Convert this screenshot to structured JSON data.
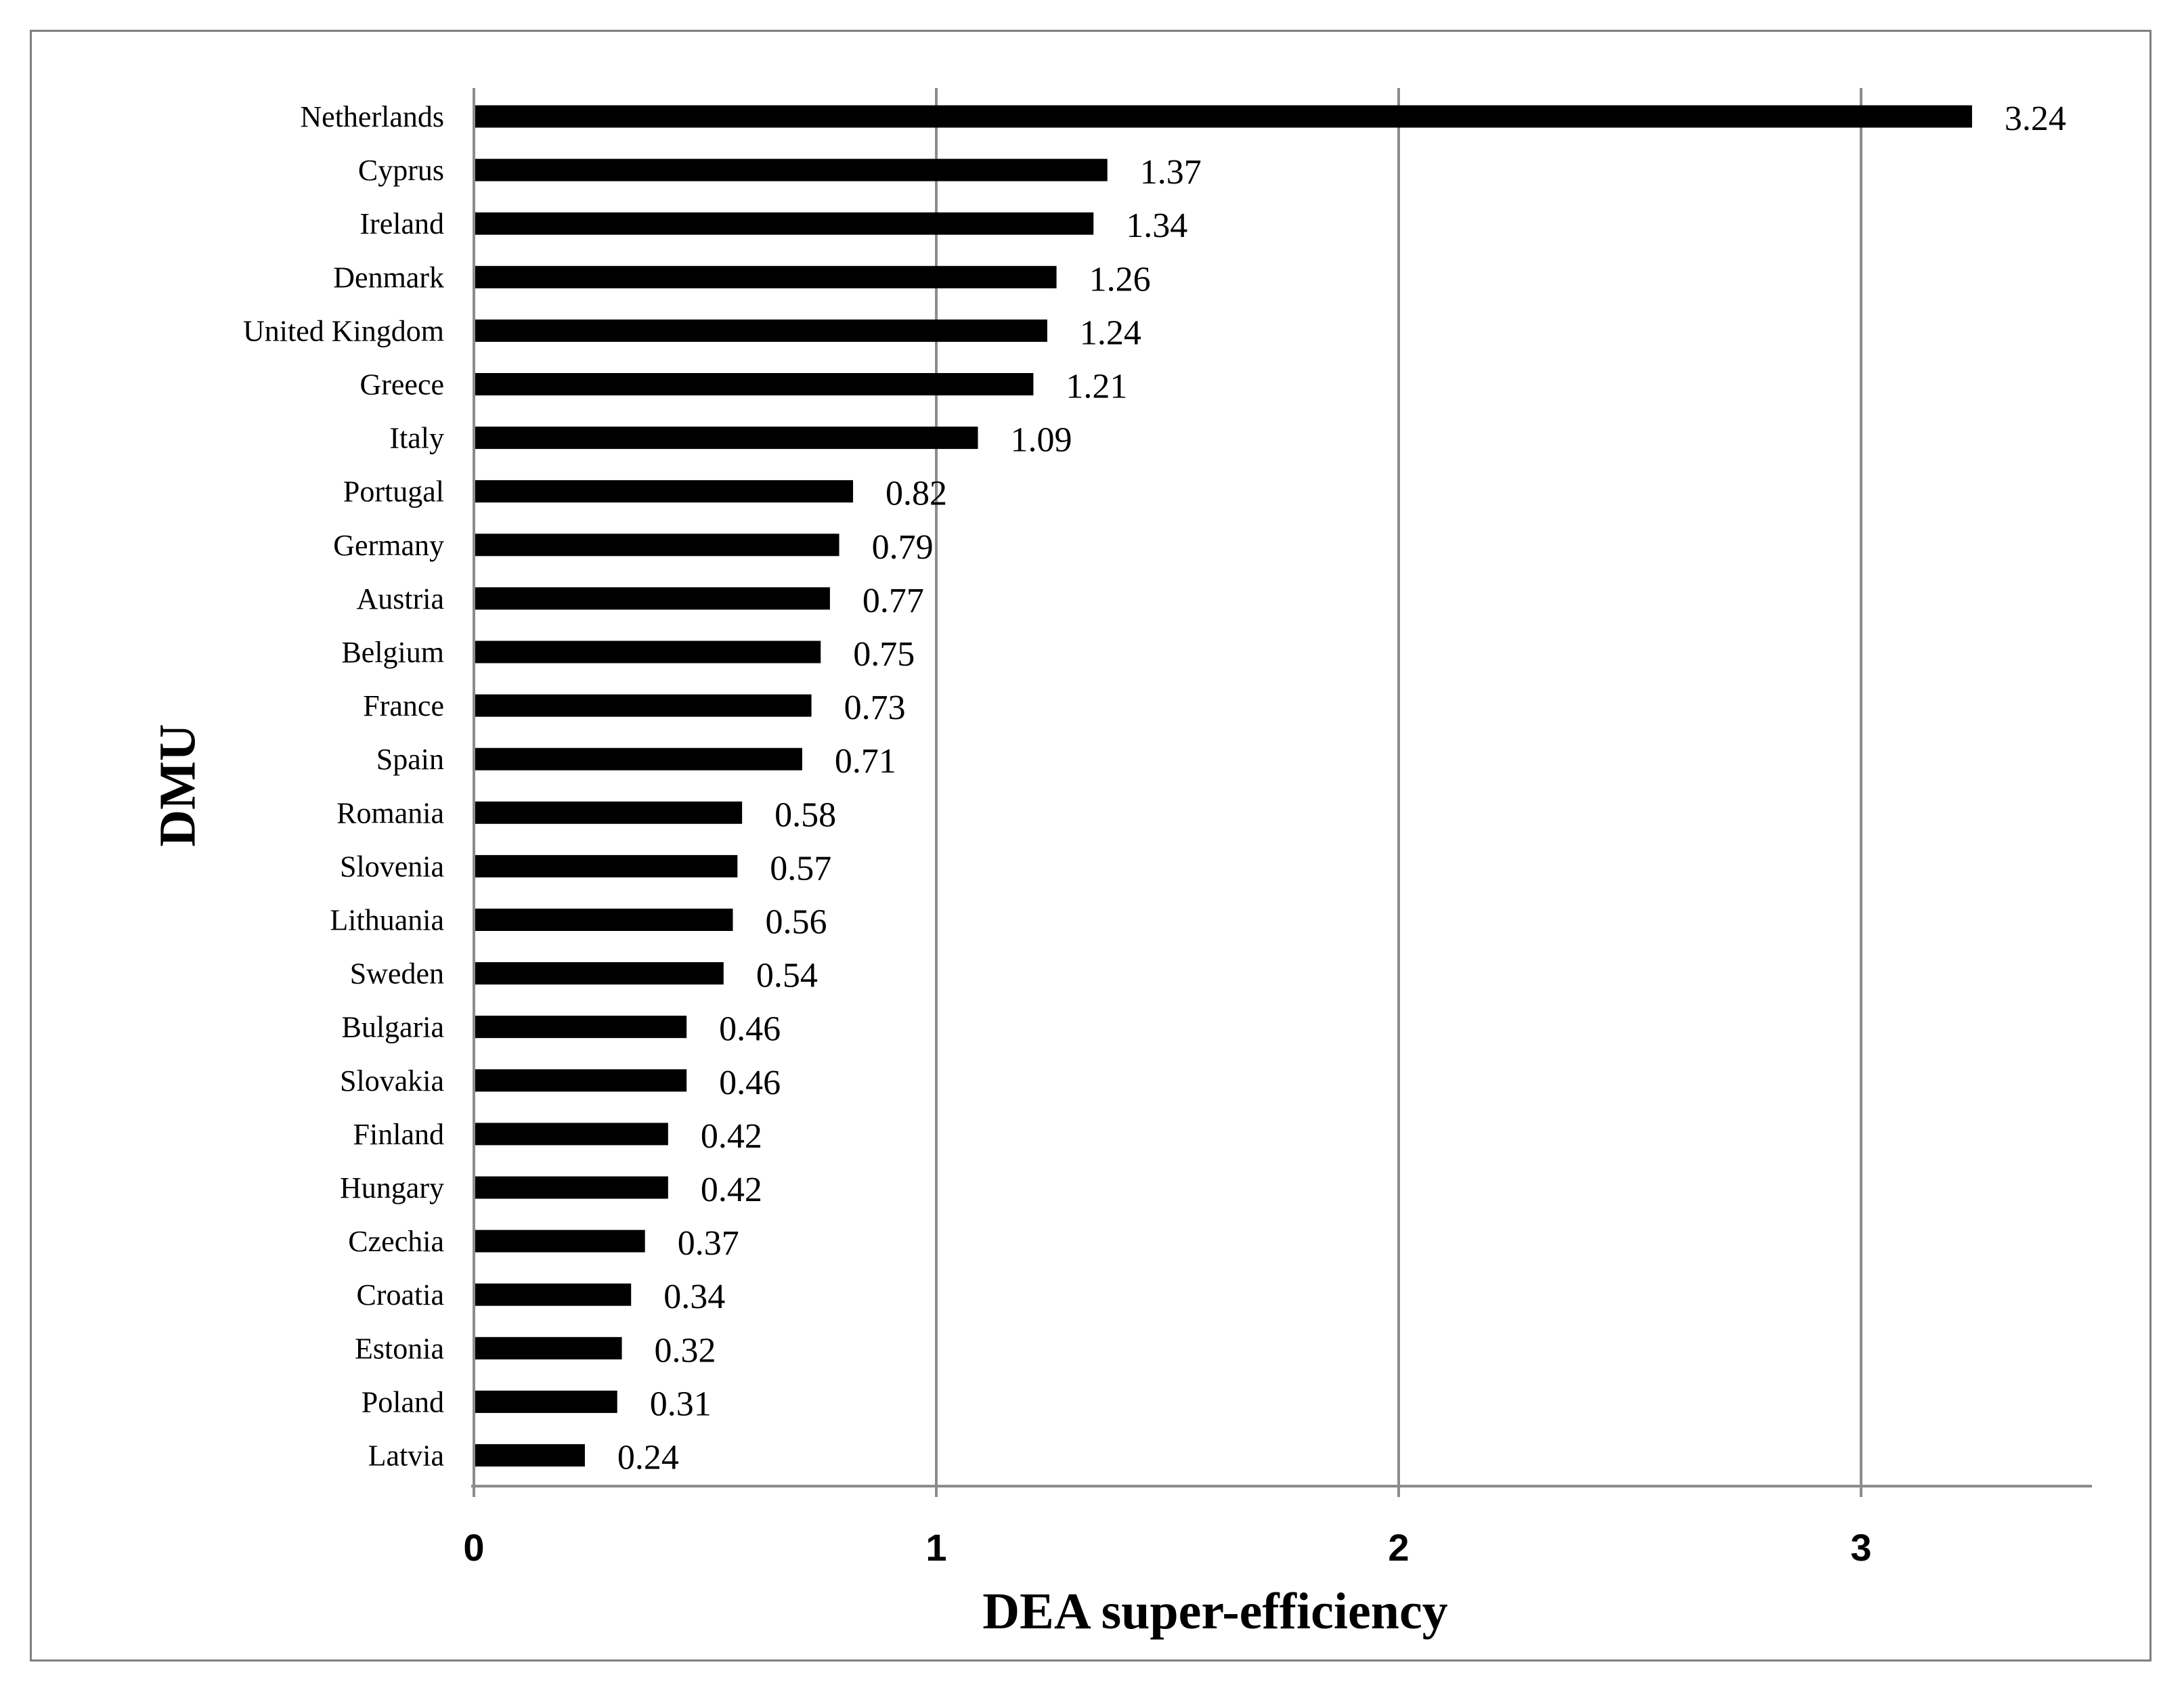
{
  "chart_data": {
    "type": "bar",
    "orientation": "horizontal",
    "title": "",
    "xlabel": "DEA super-efficiency",
    "ylabel": "DMU",
    "xlim": [
      0,
      3.5
    ],
    "xticks": [
      0,
      1,
      2,
      3
    ],
    "grid": "vertical",
    "legend": "none",
    "bar_color": "#000000",
    "grid_color": "#8c8c8c",
    "categories": [
      "Netherlands",
      "Cyprus",
      "Ireland",
      "Denmark",
      "United Kingdom",
      "Greece",
      "Italy",
      "Portugal",
      "Germany",
      "Austria",
      "Belgium",
      "France",
      "Spain",
      "Romania",
      "Slovenia",
      "Lithuania",
      "Sweden",
      "Bulgaria",
      "Slovakia",
      "Finland",
      "Hungary",
      "Czechia",
      "Croatia",
      "Estonia",
      "Poland",
      "Latvia"
    ],
    "values": [
      3.24,
      1.37,
      1.34,
      1.26,
      1.24,
      1.21,
      1.09,
      0.82,
      0.79,
      0.77,
      0.75,
      0.73,
      0.71,
      0.58,
      0.57,
      0.56,
      0.54,
      0.46,
      0.46,
      0.42,
      0.42,
      0.37,
      0.34,
      0.32,
      0.31,
      0.24
    ],
    "value_labels": [
      "3.24",
      "1.37",
      "1.34",
      "1.26",
      "1.24",
      "1.21",
      "1.09",
      "0.82",
      "0.79",
      "0.77",
      "0.75",
      "0.73",
      "0.71",
      "0.58",
      "0.57",
      "0.56",
      "0.54",
      "0.46",
      "0.46",
      "0.42",
      "0.42",
      "0.37",
      "0.34",
      "0.32",
      "0.31",
      "0.24"
    ]
  }
}
